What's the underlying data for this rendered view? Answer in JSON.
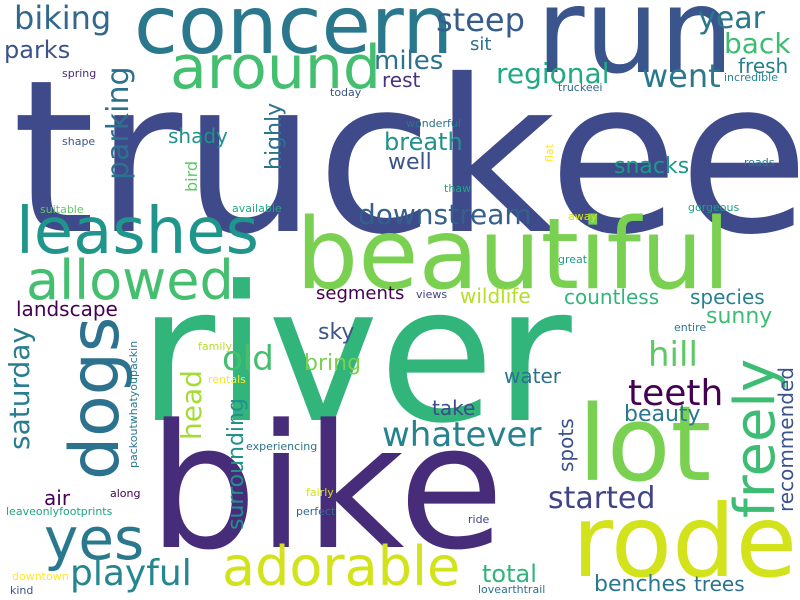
{
  "word_cloud": {
    "words": [
      {
        "text": "truckee",
        "color": "#3e4a89"
      },
      {
        "text": "river",
        "color": "#31b57b"
      },
      {
        "text": "bike",
        "color": "#472c7a"
      },
      {
        "text": "beautiful",
        "color": "#7ad151"
      },
      {
        "text": "run",
        "color": "#3a548c"
      },
      {
        "text": "lot",
        "color": "#7ad151"
      },
      {
        "text": "rode",
        "color": "#d2e21b"
      },
      {
        "text": "concern",
        "color": "#2a788e"
      },
      {
        "text": "leashes",
        "color": "#1f958b"
      },
      {
        "text": "dogs",
        "color": "#2c728e"
      },
      {
        "text": "allowed",
        "color": "#44bf70"
      },
      {
        "text": "adorable",
        "color": "#d2e21b"
      },
      {
        "text": "around",
        "color": "#44bf70"
      },
      {
        "text": "yes",
        "color": "#2a788e"
      },
      {
        "text": "freely",
        "color": "#3dbc74"
      },
      {
        "text": "playful",
        "color": "#24868e"
      },
      {
        "text": "whatever",
        "color": "#26828e"
      },
      {
        "text": "teeth",
        "color": "#440154"
      },
      {
        "text": "started",
        "color": "#414487"
      },
      {
        "text": "downstream",
        "color": "#355f8d"
      },
      {
        "text": "biking",
        "color": "#31688e"
      },
      {
        "text": "steep",
        "color": "#365c8d"
      },
      {
        "text": "year",
        "color": "#2a788e"
      },
      {
        "text": "back",
        "color": "#3dbc74"
      },
      {
        "text": "parks",
        "color": "#3b528b"
      },
      {
        "text": "miles",
        "color": "#2c728e"
      },
      {
        "text": "sit",
        "color": "#2c728e"
      },
      {
        "text": "regional",
        "color": "#22a884"
      },
      {
        "text": "went",
        "color": "#2a788e"
      },
      {
        "text": "fresh",
        "color": "#27808e"
      },
      {
        "text": "rest",
        "color": "#46327e"
      },
      {
        "text": "parking",
        "color": "#2c728e"
      },
      {
        "text": "breath",
        "color": "#21918c"
      },
      {
        "text": "well",
        "color": "#3b528b"
      },
      {
        "text": "shady",
        "color": "#21918c"
      },
      {
        "text": "highly",
        "color": "#2c728e"
      },
      {
        "text": "snacks",
        "color": "#1f988b"
      },
      {
        "text": "old",
        "color": "#44bf70"
      },
      {
        "text": "hill",
        "color": "#5ec962"
      },
      {
        "text": "head",
        "color": "#a5db36"
      },
      {
        "text": "saturday",
        "color": "#287d8e"
      },
      {
        "text": "wildlife",
        "color": "#b5de2b"
      },
      {
        "text": "countless",
        "color": "#31b57b"
      },
      {
        "text": "species",
        "color": "#26828e"
      },
      {
        "text": "sunny",
        "color": "#3dbc74"
      },
      {
        "text": "segments",
        "color": "#440154"
      },
      {
        "text": "landscape",
        "color": "#440154"
      },
      {
        "text": "sky",
        "color": "#39558c"
      },
      {
        "text": "bring",
        "color": "#7ad151"
      },
      {
        "text": "water",
        "color": "#2c728e"
      },
      {
        "text": "beauty",
        "color": "#2a788e"
      },
      {
        "text": "recommended",
        "color": "#3b528b"
      },
      {
        "text": "take",
        "color": "#3e4a89"
      },
      {
        "text": "surrounding",
        "color": "#21918c"
      },
      {
        "text": "spots",
        "color": "#3b528b"
      },
      {
        "text": "total",
        "color": "#31b57b"
      },
      {
        "text": "air",
        "color": "#440154"
      },
      {
        "text": "benches",
        "color": "#2a788e"
      },
      {
        "text": "trees",
        "color": "#2c728e"
      },
      {
        "text": "bird",
        "color": "#5ec962"
      },
      {
        "text": "packoutwhatyoupackin",
        "color": "#2a788e"
      },
      {
        "text": "spring",
        "color": "#482878"
      },
      {
        "text": "today",
        "color": "#3b528b"
      },
      {
        "text": "truckeei",
        "color": "#31688e"
      },
      {
        "text": "incredible",
        "color": "#26828e"
      },
      {
        "text": "shape",
        "color": "#39558c"
      },
      {
        "text": "wonderful",
        "color": "#2c728e"
      },
      {
        "text": "flat",
        "color": "#fde725"
      },
      {
        "text": "roads",
        "color": "#2a788e"
      },
      {
        "text": "thaw",
        "color": "#20a386"
      },
      {
        "text": "suitable",
        "color": "#5ec962"
      },
      {
        "text": "available",
        "color": "#22a884"
      },
      {
        "text": "away",
        "color": "#d2e21b"
      },
      {
        "text": "gorgeous",
        "color": "#1fa188"
      },
      {
        "text": "great",
        "color": "#1f988b"
      },
      {
        "text": "views",
        "color": "#414487"
      },
      {
        "text": "entire",
        "color": "#2a788e"
      },
      {
        "text": "family",
        "color": "#b5de2b"
      },
      {
        "text": "rentals",
        "color": "#fde725"
      },
      {
        "text": "experiencing",
        "color": "#2c728e"
      },
      {
        "text": "along",
        "color": "#440154"
      },
      {
        "text": "fairly",
        "color": "#d2e21b"
      },
      {
        "text": "leaveonlyfootprints",
        "color": "#20a386"
      },
      {
        "text": "perfect",
        "color": "#31688e"
      },
      {
        "text": "ride",
        "color": "#414487"
      },
      {
        "text": "downtown",
        "color": "#fde725"
      },
      {
        "text": "kind",
        "color": "#39558c"
      },
      {
        "text": "lovearthtrail",
        "color": "#2c728e"
      }
    ]
  }
}
